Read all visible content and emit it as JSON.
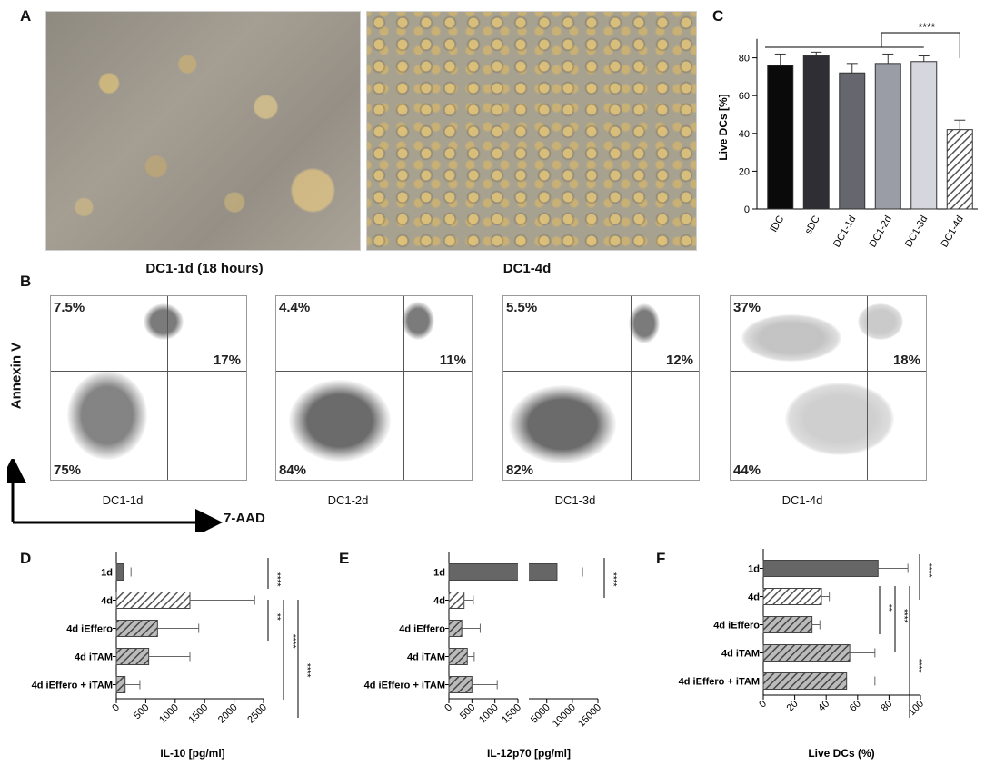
{
  "panels": {
    "a": {
      "letter": "A",
      "left_caption": "DC1-1d (18 hours)",
      "right_caption": "DC1-4d"
    },
    "b": {
      "letter": "B",
      "y_axis": "Annexin V",
      "x_axis": "7-AAD",
      "plots": [
        {
          "name": "DC1-1d",
          "tl": "7.5%",
          "tr": "17%",
          "bl": "75%"
        },
        {
          "name": "DC1-2d",
          "tl": "4.4%",
          "tr": "11%",
          "bl": "84%"
        },
        {
          "name": "DC1-3d",
          "tl": "5.5%",
          "tr": "12%",
          "bl": "82%"
        },
        {
          "name": "DC1-4d",
          "tl": "37%",
          "tr": "18%",
          "bl": "44%"
        }
      ]
    },
    "c": {
      "letter": "C"
    },
    "d": {
      "letter": "D"
    },
    "e": {
      "letter": "E"
    },
    "f": {
      "letter": "F"
    }
  },
  "chart_data": [
    {
      "id": "C",
      "type": "bar",
      "categories": [
        "iDC",
        "sDC",
        "DC1-1d",
        "DC1-2d",
        "DC1-3d",
        "DC1-4d"
      ],
      "values": [
        76,
        81,
        72,
        77,
        78,
        42
      ],
      "errors": [
        6,
        2,
        5,
        5,
        3,
        5
      ],
      "colors": [
        "#0a0a0a",
        "#2e2e34",
        "#66666e",
        "#9a9ca6",
        "#d6d6de",
        "hatch"
      ],
      "ylabel": "Live DCs [%]",
      "ylim": [
        0,
        90
      ],
      "yticks": [
        0,
        20,
        40,
        60,
        80
      ],
      "significance": "****"
    },
    {
      "id": "D",
      "type": "bar",
      "orientation": "horizontal",
      "categories": [
        "1d",
        "4d",
        "4d iEffero",
        "4d iTAM",
        "4d iEffero + iTAM"
      ],
      "values": [
        120,
        1250,
        700,
        550,
        150
      ],
      "errors": [
        130,
        1100,
        700,
        700,
        250
      ],
      "xlabel": "IL-10 [pg/ml]",
      "xlim": [
        0,
        2500
      ],
      "xticks": [
        0,
        500,
        1000,
        1500,
        2000,
        2500
      ],
      "significance": [
        "****",
        "**",
        "****",
        "****"
      ]
    },
    {
      "id": "E",
      "type": "bar",
      "orientation": "horizontal",
      "broken_axis": true,
      "categories": [
        "1d",
        "4d",
        "4d iEffero",
        "4d iTAM",
        "4d iEffero + iTAM"
      ],
      "values": [
        7000,
        330,
        280,
        400,
        500
      ],
      "errors": [
        5000,
        200,
        400,
        150,
        550
      ],
      "xlabel": "IL-12p70 [pg/ml]",
      "xticks_left": [
        0,
        500,
        1000,
        1500
      ],
      "xticks_right": [
        5000,
        10000,
        15000
      ],
      "significance": [
        "****"
      ]
    },
    {
      "id": "F",
      "type": "bar",
      "orientation": "horizontal",
      "categories": [
        "1d",
        "4d",
        "4d iEffero",
        "4d iTAM",
        "4d iEffero + iTAM"
      ],
      "values": [
        73,
        37,
        31,
        55,
        53
      ],
      "errors": [
        19,
        5,
        5,
        16,
        18
      ],
      "xlabel": "Live DCs (%)",
      "xlim": [
        0,
        100
      ],
      "xticks": [
        0,
        20,
        40,
        60,
        80,
        100
      ],
      "significance": [
        "****",
        "**",
        "****",
        "****"
      ]
    }
  ]
}
